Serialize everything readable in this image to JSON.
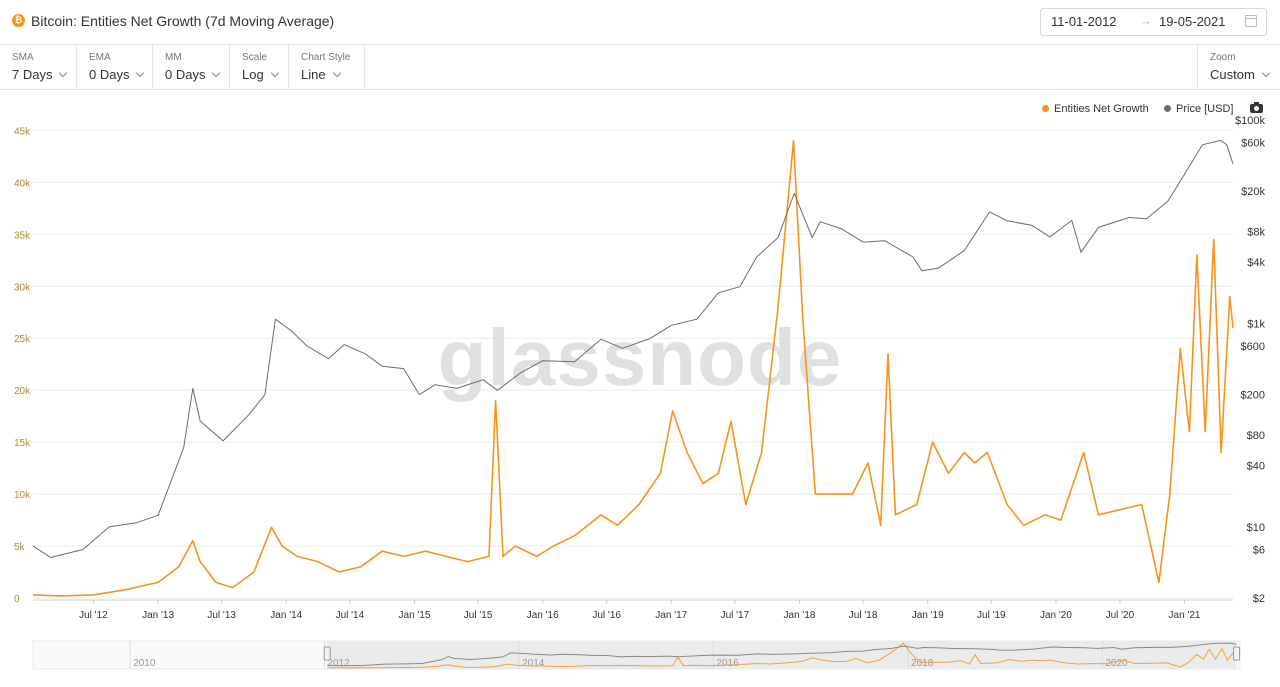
{
  "header": {
    "title": "Bitcoin: Entities Net Growth (7d Moving Average)",
    "coin_icon": "bitcoin-icon",
    "coin_glyph": "₿",
    "coin_color": "#f7931a",
    "date_from": "11-01-2012",
    "date_arrow": "→",
    "date_to": "19-05-2021",
    "calendar_icon": "calendar-icon"
  },
  "toolbar": {
    "sma": {
      "label": "SMA",
      "value": "7 Days"
    },
    "ema": {
      "label": "EMA",
      "value": "0 Days"
    },
    "mm": {
      "label": "MM",
      "value": "0 Days"
    },
    "scale": {
      "label": "Scale",
      "value": "Log"
    },
    "chart_style": {
      "label": "Chart Style",
      "value": "Line"
    },
    "zoom": {
      "label": "Zoom",
      "value": "Custom"
    }
  },
  "watermark": "glassnode",
  "camera_icon": "camera-icon",
  "chart_data": {
    "type": "line",
    "x_range": [
      "2012-01-11",
      "2021-05-19"
    ],
    "x_ticks": [
      "Jul '12",
      "Jan '13",
      "Jul '13",
      "Jan '14",
      "Jul '14",
      "Jan '15",
      "Jul '15",
      "Jan '16",
      "Jul '16",
      "Jan '17",
      "Jul '17",
      "Jan '18",
      "Jul '18",
      "Jan '19",
      "Jul '19",
      "Jan '20",
      "Jul '20",
      "Jan '21"
    ],
    "y_left": {
      "ticks": [
        "0",
        "5k",
        "10k",
        "15k",
        "20k",
        "25k",
        "30k",
        "35k",
        "40k",
        "45k"
      ],
      "range": [
        0,
        46000
      ],
      "color": "#b8862e"
    },
    "y_right": {
      "scale": "log",
      "ticks": [
        "$2",
        "$6",
        "$10",
        "$40",
        "$80",
        "$200",
        "$600",
        "$1k",
        "$4k",
        "$8k",
        "$20k",
        "$60k",
        "$100k"
      ],
      "range": [
        2,
        100000
      ]
    },
    "grid": true,
    "legend_position": "top-right",
    "series": [
      {
        "name": "Entities Net Growth",
        "axis": "left",
        "color": "#f7931a",
        "points": [
          [
            "2012-01-11",
            300
          ],
          [
            "2012-04-01",
            200
          ],
          [
            "2012-07-01",
            300
          ],
          [
            "2012-10-01",
            800
          ],
          [
            "2013-01-01",
            1500
          ],
          [
            "2013-03-01",
            3000
          ],
          [
            "2013-04-10",
            5500
          ],
          [
            "2013-05-01",
            3500
          ],
          [
            "2013-06-15",
            1500
          ],
          [
            "2013-08-01",
            1000
          ],
          [
            "2013-10-01",
            2500
          ],
          [
            "2013-11-20",
            6800
          ],
          [
            "2013-12-20",
            5000
          ],
          [
            "2014-02-01",
            4000
          ],
          [
            "2014-04-01",
            3500
          ],
          [
            "2014-06-01",
            2500
          ],
          [
            "2014-08-01",
            3000
          ],
          [
            "2014-10-01",
            4500
          ],
          [
            "2014-12-01",
            4000
          ],
          [
            "2015-02-01",
            4500
          ],
          [
            "2015-04-01",
            4000
          ],
          [
            "2015-06-01",
            3500
          ],
          [
            "2015-08-01",
            4000
          ],
          [
            "2015-08-20",
            19000
          ],
          [
            "2015-09-10",
            4000
          ],
          [
            "2015-10-15",
            5000
          ],
          [
            "2015-12-15",
            4000
          ],
          [
            "2016-02-01",
            5000
          ],
          [
            "2016-04-01",
            6000
          ],
          [
            "2016-06-15",
            8000
          ],
          [
            "2016-08-01",
            7000
          ],
          [
            "2016-10-01",
            9000
          ],
          [
            "2016-12-01",
            12000
          ],
          [
            "2017-01-05",
            18000
          ],
          [
            "2017-02-15",
            14000
          ],
          [
            "2017-04-01",
            11000
          ],
          [
            "2017-05-15",
            12000
          ],
          [
            "2017-06-20",
            17000
          ],
          [
            "2017-08-01",
            9000
          ],
          [
            "2017-09-15",
            14000
          ],
          [
            "2017-11-01",
            28000
          ],
          [
            "2017-12-15",
            44000
          ],
          [
            "2018-01-10",
            27000
          ],
          [
            "2018-02-15",
            10000
          ],
          [
            "2018-04-01",
            10000
          ],
          [
            "2018-06-01",
            10000
          ],
          [
            "2018-07-15",
            13000
          ],
          [
            "2018-08-20",
            7000
          ],
          [
            "2018-09-10",
            23500
          ],
          [
            "2018-10-01",
            8000
          ],
          [
            "2018-12-01",
            9000
          ],
          [
            "2019-01-15",
            15000
          ],
          [
            "2019-03-01",
            12000
          ],
          [
            "2019-04-15",
            14000
          ],
          [
            "2019-05-15",
            13000
          ],
          [
            "2019-06-20",
            14000
          ],
          [
            "2019-08-15",
            9000
          ],
          [
            "2019-10-01",
            7000
          ],
          [
            "2019-12-01",
            8000
          ],
          [
            "2020-01-15",
            7500
          ],
          [
            "2020-03-20",
            14000
          ],
          [
            "2020-05-01",
            8000
          ],
          [
            "2020-07-01",
            8500
          ],
          [
            "2020-09-01",
            9000
          ],
          [
            "2020-10-20",
            1500
          ],
          [
            "2020-11-20",
            10000
          ],
          [
            "2020-12-20",
            24000
          ],
          [
            "2021-01-15",
            16000
          ],
          [
            "2021-02-05",
            33000
          ],
          [
            "2021-03-01",
            16000
          ],
          [
            "2021-03-25",
            34500
          ],
          [
            "2021-04-15",
            14000
          ],
          [
            "2021-05-10",
            29000
          ],
          [
            "2021-05-19",
            26000
          ]
        ]
      },
      {
        "name": "Price [USD]",
        "axis": "right",
        "color": "#6b6b6b",
        "points": [
          [
            "2012-01-11",
            6.5
          ],
          [
            "2012-03-01",
            5
          ],
          [
            "2012-06-01",
            6
          ],
          [
            "2012-08-15",
            10
          ],
          [
            "2012-11-01",
            11
          ],
          [
            "2013-01-01",
            13
          ],
          [
            "2013-03-15",
            60
          ],
          [
            "2013-04-10",
            230
          ],
          [
            "2013-05-01",
            110
          ],
          [
            "2013-07-05",
            70
          ],
          [
            "2013-09-15",
            125
          ],
          [
            "2013-11-01",
            200
          ],
          [
            "2013-12-01",
            1100
          ],
          [
            "2014-01-15",
            850
          ],
          [
            "2014-03-01",
            600
          ],
          [
            "2014-05-01",
            450
          ],
          [
            "2014-06-15",
            620
          ],
          [
            "2014-08-15",
            500
          ],
          [
            "2014-10-01",
            380
          ],
          [
            "2014-12-01",
            360
          ],
          [
            "2015-01-15",
            200
          ],
          [
            "2015-03-01",
            250
          ],
          [
            "2015-05-01",
            230
          ],
          [
            "2015-07-15",
            280
          ],
          [
            "2015-08-25",
            220
          ],
          [
            "2015-11-01",
            330
          ],
          [
            "2016-01-01",
            430
          ],
          [
            "2016-04-01",
            420
          ],
          [
            "2016-06-15",
            700
          ],
          [
            "2016-08-15",
            570
          ],
          [
            "2016-11-01",
            710
          ],
          [
            "2017-01-01",
            960
          ],
          [
            "2017-03-15",
            1100
          ],
          [
            "2017-05-15",
            2000
          ],
          [
            "2017-07-15",
            2300
          ],
          [
            "2017-09-01",
            4500
          ],
          [
            "2017-11-01",
            7000
          ],
          [
            "2017-12-17",
            19000
          ],
          [
            "2018-02-06",
            7000
          ],
          [
            "2018-03-01",
            10000
          ],
          [
            "2018-05-01",
            8500
          ],
          [
            "2018-07-01",
            6300
          ],
          [
            "2018-09-01",
            6500
          ],
          [
            "2018-11-20",
            4500
          ],
          [
            "2018-12-15",
            3300
          ],
          [
            "2019-02-01",
            3500
          ],
          [
            "2019-04-15",
            5200
          ],
          [
            "2019-06-26",
            12500
          ],
          [
            "2019-08-15",
            10200
          ],
          [
            "2019-10-25",
            9200
          ],
          [
            "2019-12-15",
            7100
          ],
          [
            "2020-02-15",
            10300
          ],
          [
            "2020-03-12",
            5000
          ],
          [
            "2020-05-01",
            8800
          ],
          [
            "2020-07-27",
            11000
          ],
          [
            "2020-09-15",
            10700
          ],
          [
            "2020-11-15",
            16000
          ],
          [
            "2020-12-31",
            29000
          ],
          [
            "2021-02-21",
            57000
          ],
          [
            "2021-04-14",
            63000
          ],
          [
            "2021-05-01",
            57000
          ],
          [
            "2021-05-19",
            37000
          ]
        ]
      }
    ],
    "navigator": {
      "ticks": [
        "2010",
        "2012",
        "2014",
        "2016",
        "2018",
        "2020"
      ]
    }
  }
}
